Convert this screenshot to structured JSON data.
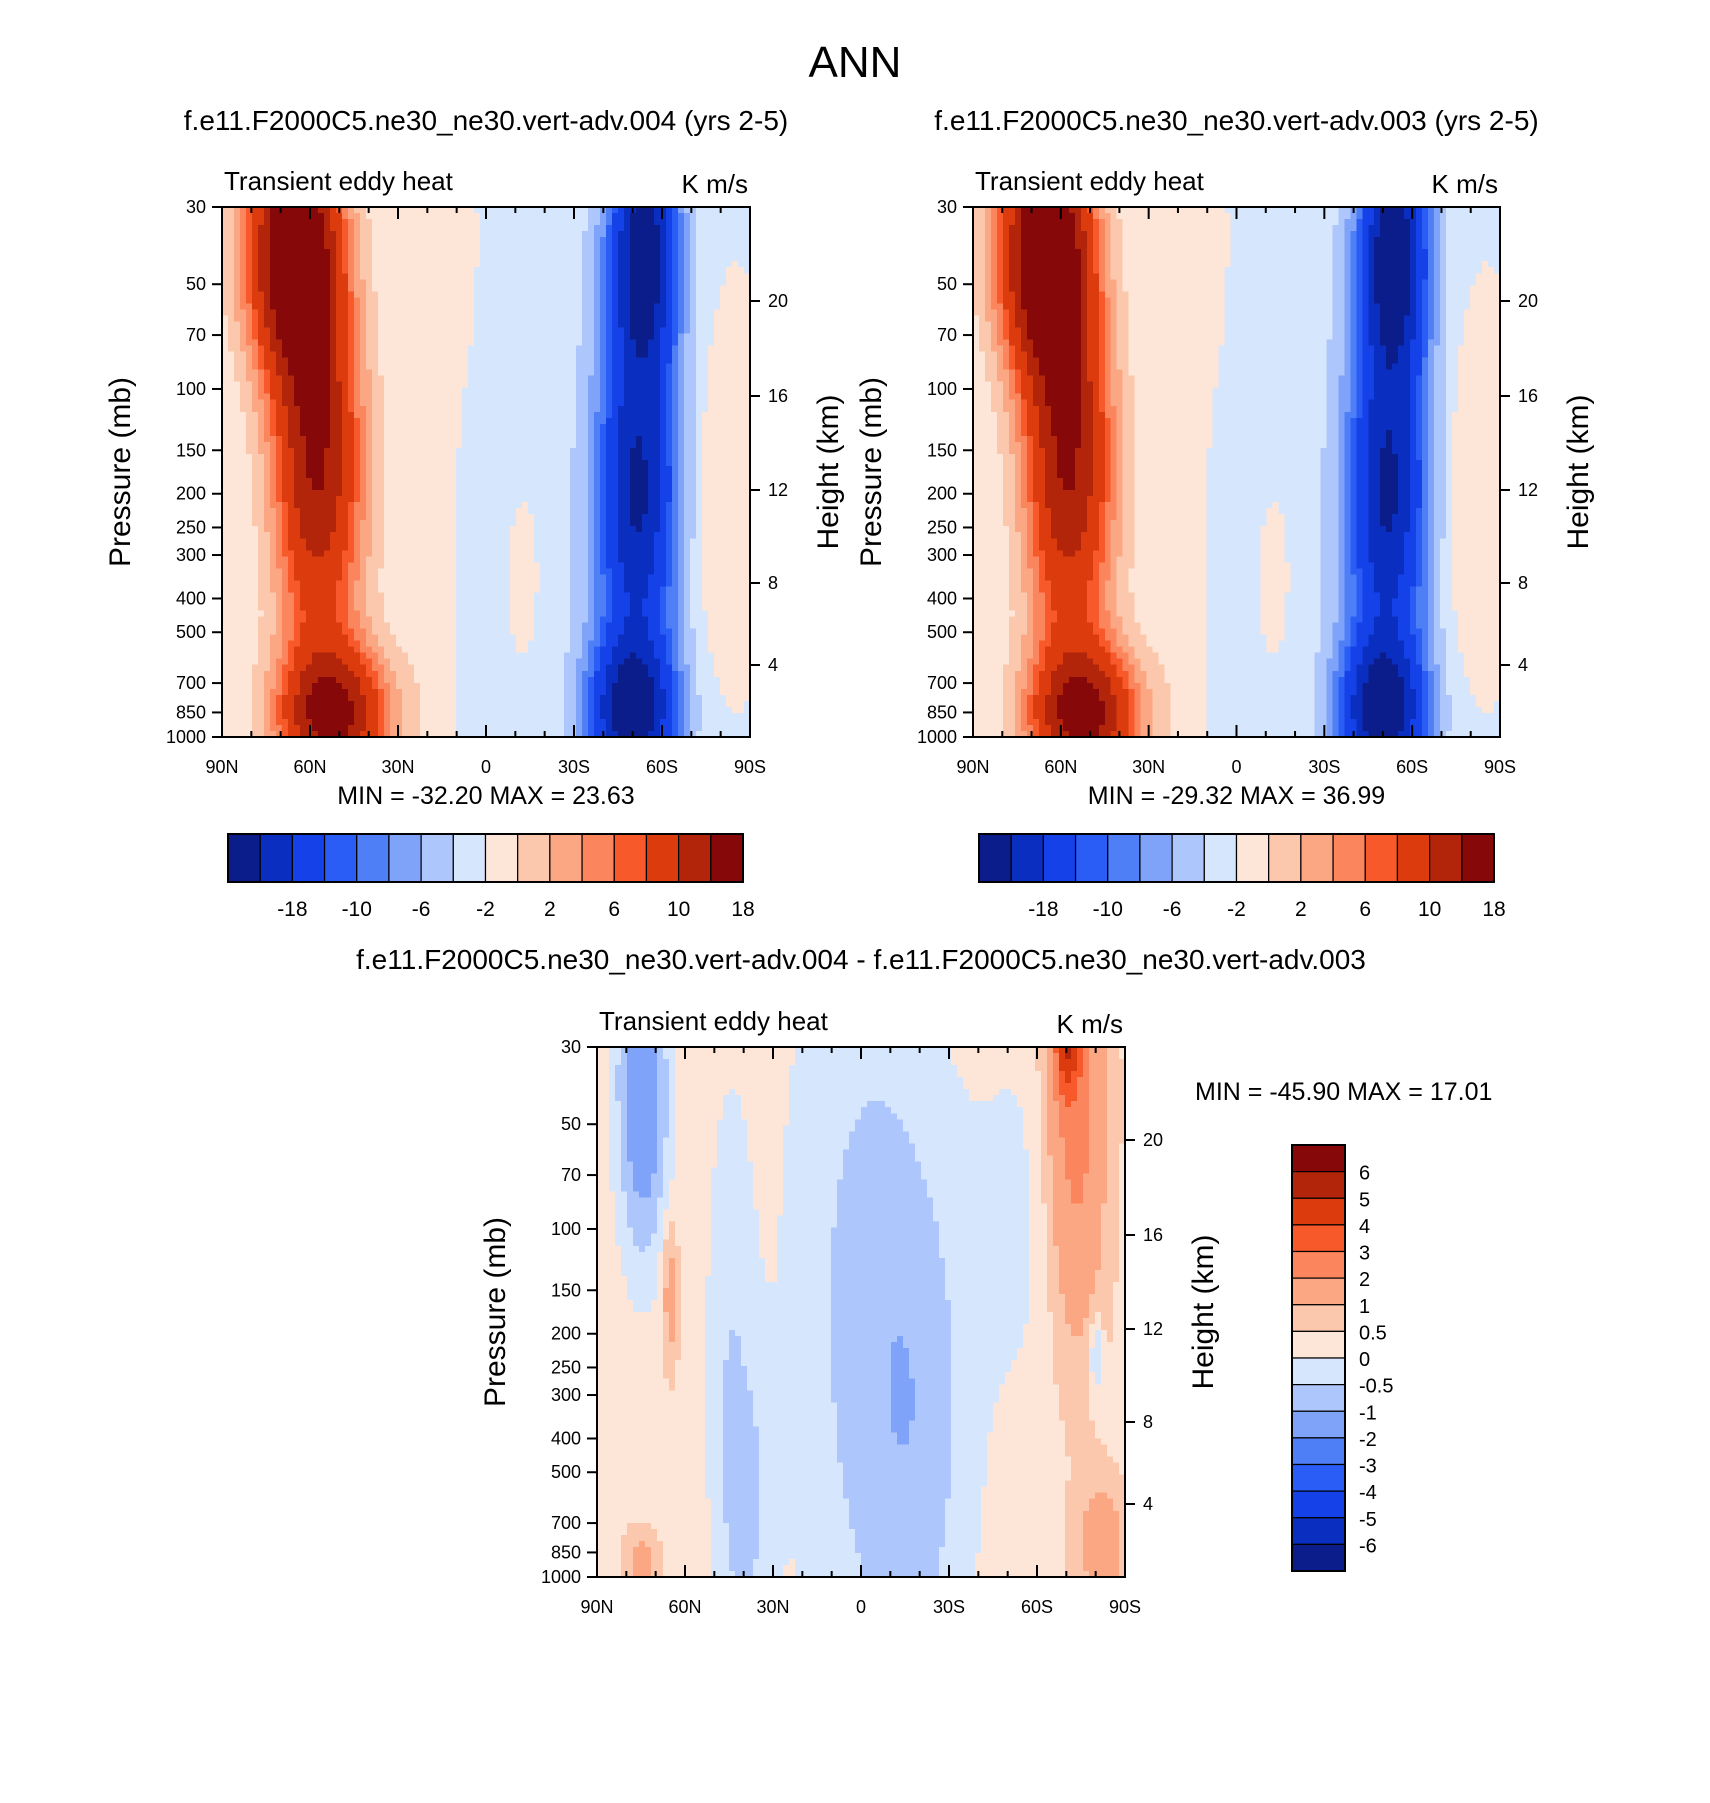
{
  "figure_title": "ANN",
  "colors": {
    "neg": [
      "#0a1d8a",
      "#0a2fc0",
      "#1541e8",
      "#2a5cf6",
      "#4f7ff7",
      "#7ea3f9",
      "#adc6fb",
      "#d6e7fd"
    ],
    "pos": [
      "#fde6d8",
      "#fcc8ad",
      "#fca784",
      "#fb855c",
      "#f7592a",
      "#dc3b0e",
      "#b2250a",
      "#860808"
    ]
  },
  "chart_data": [
    {
      "type": "heatmap",
      "panel": "top-left",
      "title": "f.e11.F2000C5.ne30_ne30.vert-adv.004 (yrs 2-5)",
      "left_label": "Transient eddy heat",
      "right_label": "K m/s",
      "ylabel": "Pressure (mb)",
      "y2label": "Height (km)",
      "x_ticks": [
        "90N",
        "60N",
        "30N",
        "0",
        "30S",
        "60S",
        "90S"
      ],
      "y_ticks": [
        30,
        50,
        70,
        100,
        150,
        200,
        250,
        300,
        400,
        500,
        700,
        850,
        1000
      ],
      "y_scale": "log",
      "y2_ticks": [
        20,
        16,
        12,
        8,
        4
      ],
      "minmax_text": "MIN = -32.20  MAX =  23.63",
      "stats": {
        "min": -32.2,
        "max": 23.63
      },
      "colorbar": {
        "orientation": "horizontal",
        "labels": [
          "-18",
          "-10",
          "-6",
          "-2",
          "2",
          "6",
          "10",
          "18"
        ]
      },
      "lobes": [
        {
          "lat": 66,
          "p": 40,
          "wlat": 11,
          "wlogp": 0.25,
          "amp": 22
        },
        {
          "lat": 56,
          "p": 180,
          "wlat": 11,
          "wlogp": 0.35,
          "amp": 13
        },
        {
          "lat": 60,
          "p": 100,
          "wlat": 9,
          "wlogp": 0.5,
          "amp": 6
        },
        {
          "lat": 52,
          "p": 870,
          "wlat": 13,
          "wlogp": 0.14,
          "amp": 19
        },
        {
          "lat": 18,
          "p": 300,
          "wlat": 8,
          "wlogp": 0.8,
          "amp": 1.2
        },
        {
          "lat": -12,
          "p": 330,
          "wlat": 7,
          "wlogp": 0.3,
          "amp": 1.3
        },
        {
          "lat": -54,
          "p": 40,
          "wlat": 8,
          "wlogp": 0.25,
          "amp": -19
        },
        {
          "lat": -52,
          "p": 200,
          "wlat": 9,
          "wlogp": 0.3,
          "amp": -14
        },
        {
          "lat": -50,
          "p": 840,
          "wlat": 10,
          "wlogp": 0.14,
          "amp": -17
        },
        {
          "lat": -50,
          "p": 500,
          "wlat": 12,
          "wlogp": 0.9,
          "amp": -5
        },
        {
          "lat": -78,
          "p": 220,
          "wlat": 5,
          "wlogp": 0.3,
          "amp": 2
        },
        {
          "lat": -4,
          "p": 100,
          "wlat": 18,
          "wlogp": 1.2,
          "amp": -1.2
        },
        {
          "lat": 5,
          "p": 40,
          "wlat": 6,
          "wlogp": 0.4,
          "amp": 1.0
        }
      ]
    },
    {
      "type": "heatmap",
      "panel": "top-right",
      "title": "f.e11.F2000C5.ne30_ne30.vert-adv.003 (yrs 2-5)",
      "left_label": "Transient eddy heat",
      "right_label": "K m/s",
      "ylabel": "Pressure (mb)",
      "y2label": "Height (km)",
      "x_ticks": [
        "90N",
        "60N",
        "30N",
        "0",
        "30S",
        "60S",
        "90S"
      ],
      "y_ticks": [
        30,
        50,
        70,
        100,
        150,
        200,
        250,
        300,
        400,
        500,
        700,
        850,
        1000
      ],
      "y_scale": "log",
      "y2_ticks": [
        20,
        16,
        12,
        8,
        4
      ],
      "minmax_text": "MIN = -29.32  MAX =  36.99",
      "stats": {
        "min": -29.32,
        "max": 36.99
      },
      "colorbar": {
        "orientation": "horizontal",
        "labels": [
          "-18",
          "-10",
          "-6",
          "-2",
          "2",
          "6",
          "10",
          "18"
        ]
      },
      "lobes": [
        {
          "lat": 66,
          "p": 40,
          "wlat": 11,
          "wlogp": 0.25,
          "amp": 22
        },
        {
          "lat": 56,
          "p": 180,
          "wlat": 11,
          "wlogp": 0.35,
          "amp": 13
        },
        {
          "lat": 60,
          "p": 100,
          "wlat": 9,
          "wlogp": 0.5,
          "amp": 6
        },
        {
          "lat": 52,
          "p": 870,
          "wlat": 13,
          "wlogp": 0.14,
          "amp": 19
        },
        {
          "lat": 18,
          "p": 300,
          "wlat": 8,
          "wlogp": 0.8,
          "amp": 1.2
        },
        {
          "lat": -12,
          "p": 330,
          "wlat": 7,
          "wlogp": 0.3,
          "amp": 1.3
        },
        {
          "lat": -54,
          "p": 40,
          "wlat": 8,
          "wlogp": 0.25,
          "amp": -20
        },
        {
          "lat": -52,
          "p": 200,
          "wlat": 9,
          "wlogp": 0.3,
          "amp": -14
        },
        {
          "lat": -50,
          "p": 840,
          "wlat": 10,
          "wlogp": 0.14,
          "amp": -17
        },
        {
          "lat": -50,
          "p": 500,
          "wlat": 12,
          "wlogp": 0.9,
          "amp": -5
        },
        {
          "lat": -78,
          "p": 220,
          "wlat": 5,
          "wlogp": 0.3,
          "amp": 2
        },
        {
          "lat": -4,
          "p": 100,
          "wlat": 18,
          "wlogp": 1.2,
          "amp": -1.2
        },
        {
          "lat": 5,
          "p": 40,
          "wlat": 6,
          "wlogp": 0.4,
          "amp": 1.0
        }
      ]
    },
    {
      "type": "heatmap",
      "panel": "bottom-diff",
      "title": "f.e11.F2000C5.ne30_ne30.vert-adv.004 - f.e11.F2000C5.ne30_ne30.vert-adv.003",
      "left_label": "Transient eddy heat",
      "right_label": "K m/s",
      "ylabel": "Pressure (mb)",
      "y2label": "Height (km)",
      "x_ticks": [
        "90N",
        "60N",
        "30N",
        "0",
        "30S",
        "60S",
        "90S"
      ],
      "y_ticks": [
        30,
        50,
        70,
        100,
        150,
        200,
        250,
        300,
        400,
        500,
        700,
        850,
        1000
      ],
      "y_scale": "log",
      "y2_ticks": [
        20,
        16,
        12,
        8,
        4
      ],
      "minmax_text": "MIN = -45.90  MAX =  17.01",
      "stats": {
        "min": -45.9,
        "max": 17.01
      },
      "colorbar": {
        "orientation": "vertical",
        "labels": [
          "6",
          "5",
          "4",
          "3",
          "2",
          "1",
          "0.5",
          "0",
          "-0.5",
          "-1",
          "-2",
          "-3",
          "-4",
          "-5",
          "-6"
        ]
      },
      "base": 0.35,
      "lobes": [
        {
          "lat": 75,
          "p": 35,
          "wlat": 6,
          "wlogp": 0.35,
          "amp": -1.8
        },
        {
          "lat": 72,
          "p": 60,
          "wlat": 7,
          "wlogp": 0.3,
          "amp": -0.4
        },
        {
          "lat": -73,
          "p": 45,
          "wlat": 7,
          "wlogp": 0.45,
          "amp": 2.2
        },
        {
          "lat": -70,
          "p": 30,
          "wlat": 3,
          "wlogp": 0.1,
          "amp": 3
        },
        {
          "lat": 0,
          "p": 150,
          "wlat": 20,
          "wlogp": 0.9,
          "amp": -0.9
        },
        {
          "lat": 45,
          "p": 250,
          "wlat": 6,
          "wlogp": 0.6,
          "amp": -0.7
        },
        {
          "lat": 38,
          "p": 650,
          "wlat": 6,
          "wlogp": 0.3,
          "amp": -0.7
        },
        {
          "lat": -20,
          "p": 400,
          "wlat": 14,
          "wlogp": 0.6,
          "amp": -0.8
        },
        {
          "lat": -55,
          "p": 90,
          "wlat": 12,
          "wlogp": 0.4,
          "amp": -0.5
        },
        {
          "lat": 65,
          "p": 150,
          "wlat": 2,
          "wlogp": 0.15,
          "amp": 1.2
        },
        {
          "lat": -82,
          "p": 800,
          "wlat": 6,
          "wlogp": 0.12,
          "amp": 1.2
        },
        {
          "lat": 75,
          "p": 900,
          "wlat": 4,
          "wlogp": 0.06,
          "amp": 1.0
        },
        {
          "lat": -80,
          "p": 230,
          "wlat": 1.5,
          "wlogp": 0.08,
          "amp": -1.2
        }
      ]
    }
  ]
}
